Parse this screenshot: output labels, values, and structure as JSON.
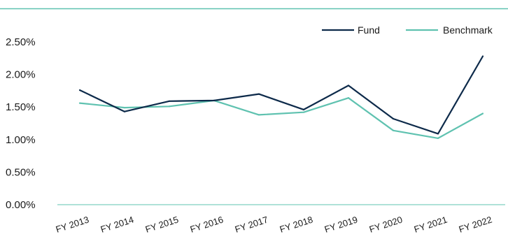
{
  "chart_data": {
    "type": "line",
    "title": "",
    "xlabel": "",
    "ylabel": "",
    "categories": [
      "FY 2013",
      "FY 2014",
      "FY 2015",
      "FY 2016",
      "FY 2017",
      "FY 2018",
      "FY 2019",
      "FY 2020",
      "FY 2021",
      "FY 2022"
    ],
    "series": [
      {
        "name": "Fund",
        "color": "#0d2a4a",
        "values": [
          1.76,
          1.43,
          1.59,
          1.6,
          1.7,
          1.46,
          1.83,
          1.32,
          1.09,
          2.28
        ]
      },
      {
        "name": "Benchmark",
        "color": "#5fc2b0",
        "values": [
          1.56,
          1.49,
          1.51,
          1.6,
          1.38,
          1.42,
          1.64,
          1.14,
          1.02,
          1.4
        ]
      }
    ],
    "ylim": [
      0,
      2.5
    ],
    "yticks": [
      "0.00%",
      "0.50%",
      "1.00%",
      "1.50%",
      "2.00%",
      "2.50%"
    ],
    "grid": false,
    "legend": "top-right"
  }
}
